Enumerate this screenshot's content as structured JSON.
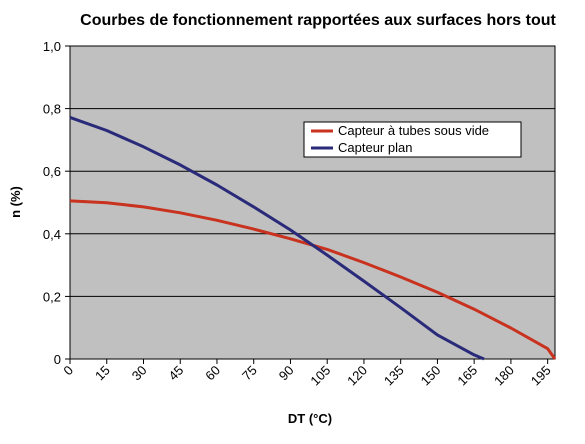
{
  "chart_data": {
    "type": "line",
    "title": "Courbes de fonctionnement rapportées aux surfaces hors tout",
    "xlabel": "DT (°C)",
    "ylabel": "n (%)",
    "xlim": [
      0,
      198
    ],
    "ylim": [
      0,
      1.0
    ],
    "x_ticks": [
      "0",
      "15",
      "30",
      "45",
      "60",
      "75",
      "90",
      "105",
      "120",
      "135",
      "150",
      "165",
      "180",
      "195"
    ],
    "y_ticks": [
      "0",
      "0,2",
      "0,4",
      "0,6",
      "0,8",
      "1,0"
    ],
    "y_tick_values": [
      0,
      0.2,
      0.4,
      0.6,
      0.8,
      1.0
    ],
    "grid": "horizontal",
    "legend_position": "upper-right",
    "series": [
      {
        "name": "Capteur à tubes sous vide",
        "color": "#c8321e",
        "x": [
          0,
          15,
          30,
          45,
          60,
          75,
          90,
          105,
          120,
          135,
          150,
          165,
          180,
          195,
          198
        ],
        "y": [
          0.505,
          0.499,
          0.486,
          0.467,
          0.443,
          0.415,
          0.384,
          0.35,
          0.308,
          0.262,
          0.213,
          0.159,
          0.099,
          0.033,
          0.0
        ]
      },
      {
        "name": "Capteur plan",
        "color": "#2a2a7a",
        "x": [
          0,
          15,
          30,
          45,
          60,
          75,
          90,
          105,
          120,
          135,
          150,
          165,
          169
        ],
        "y": [
          0.772,
          0.73,
          0.678,
          0.62,
          0.556,
          0.486,
          0.412,
          0.332,
          0.249,
          0.164,
          0.077,
          0.013,
          0.0
        ]
      }
    ]
  }
}
